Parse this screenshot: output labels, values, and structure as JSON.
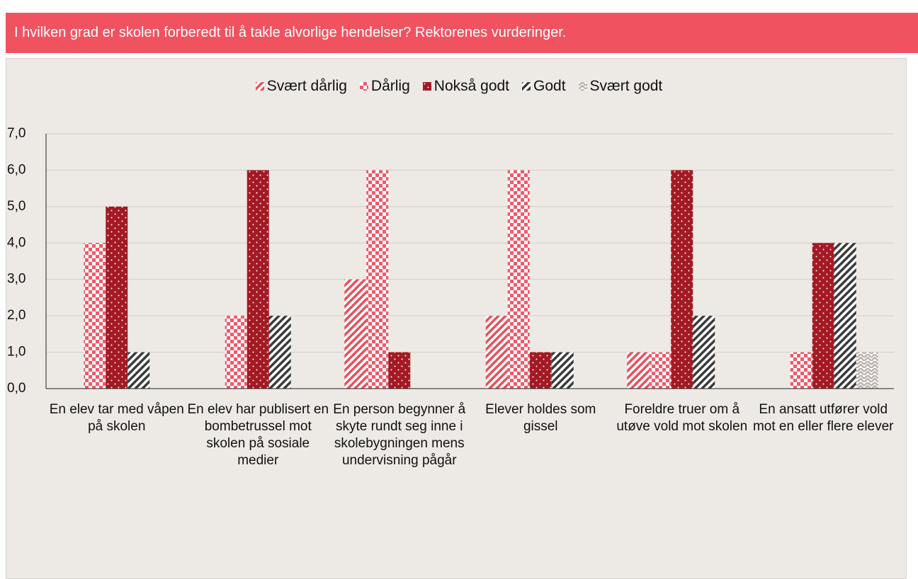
{
  "header": {
    "title": "I hvilken grad er skolen forberedt til å takle alvorlige hendelser? Rektorenes vurderinger."
  },
  "chart_data": {
    "type": "bar",
    "categories": [
      "En elev tar med våpen på skolen",
      "En elev har publisert en bombetrussel mot skolen på sosiale medier",
      "En person begynner å skyte rundt seg inne i skolebygningen mens undervisning pågår",
      "Elever holdes som gissel",
      "Foreldre truer om å utøve vold mot skolen",
      "En ansatt utfører vold mot en eller flere elever"
    ],
    "series": [
      {
        "name": "Svært dårlig",
        "color": "#e8505b",
        "pattern": "diagonal",
        "values": [
          0,
          0,
          3,
          2,
          1,
          0
        ]
      },
      {
        "name": "Dårlig",
        "color": "#f2596a",
        "pattern": "checker",
        "values": [
          4,
          2,
          6,
          6,
          1,
          1
        ]
      },
      {
        "name": "Nokså godt",
        "color": "#a31a24",
        "pattern": "dots",
        "values": [
          5,
          6,
          1,
          1,
          6,
          4
        ]
      },
      {
        "name": "Godt",
        "color": "#3a3a3a",
        "pattern": "diagonal",
        "values": [
          1,
          2,
          0,
          1,
          2,
          4
        ]
      },
      {
        "name": "Svært godt",
        "color": "#bdb3ae",
        "pattern": "zigzag",
        "values": [
          0,
          0,
          0,
          0,
          0,
          1
        ]
      }
    ],
    "ylim": [
      0,
      7
    ],
    "yticks": [
      {
        "value": 0,
        "label": "0,0"
      },
      {
        "value": 1,
        "label": "1,0"
      },
      {
        "value": 2,
        "label": "2,0"
      },
      {
        "value": 3,
        "label": "3,0"
      },
      {
        "value": 4,
        "label": "4,0"
      },
      {
        "value": 5,
        "label": "5,0"
      },
      {
        "value": 6,
        "label": "6,0"
      },
      {
        "value": 7,
        "label": "7,0"
      }
    ],
    "grid": true,
    "legend": "top"
  }
}
